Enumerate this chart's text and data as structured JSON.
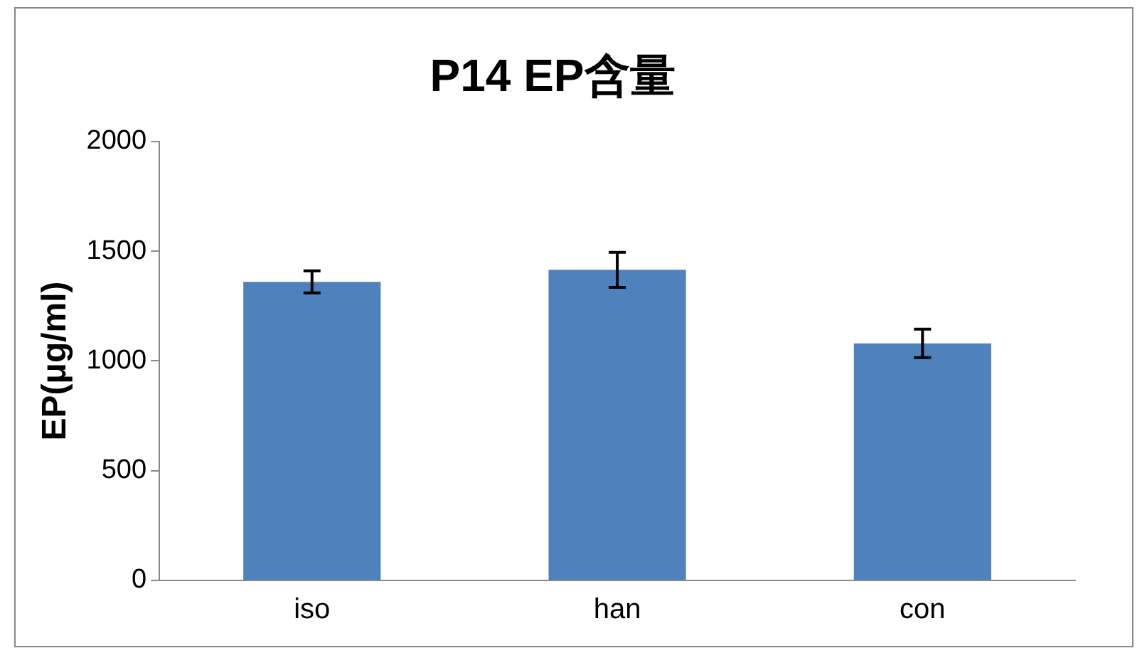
{
  "chart_data": {
    "type": "bar",
    "title": "P14 EP含量",
    "ylabel": "EP(μg/ml)",
    "categories": [
      "iso",
      "han",
      "con"
    ],
    "values": [
      1360,
      1415,
      1080
    ],
    "errors": [
      50,
      80,
      65
    ],
    "color": "#4f81bd",
    "ylim": [
      0,
      2000
    ],
    "yticks": [
      0,
      500,
      1000,
      1500,
      2000
    ],
    "grid": false,
    "legend": false
  }
}
